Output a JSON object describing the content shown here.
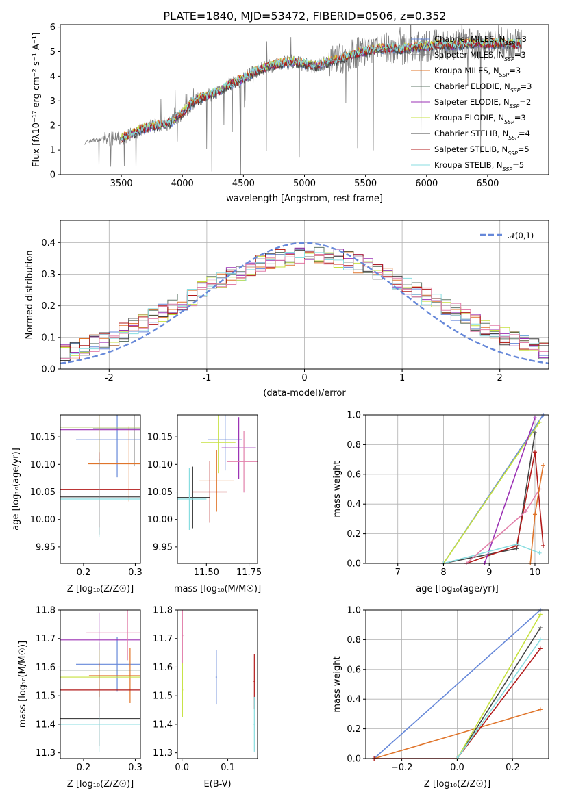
{
  "title": "PLATE=1840, MJD=53472, FIBERID=0506, z=0.352",
  "colors": {
    "Chabrier MILES": "#6688d9",
    "Salpeter MILES": "#808080",
    "Kroupa MILES": "#e0742a",
    "Chabrier ELODIE": "#62786a",
    "Salpeter ELODIE": "#9b31b4",
    "Kroupa ELODIE": "#c6e13e",
    "Chabrier STELIB": "#444444",
    "Salpeter STELIB": "#b21a1a",
    "Kroupa STELIB": "#88dde0",
    "pink": "#e27faa",
    "data": "#808080"
  },
  "chart_data": [
    {
      "type": "line",
      "title": "PLATE=1840, MJD=53472, FIBERID=0506, z=0.352",
      "xlabel": "wavelength [Angstrom, rest frame]",
      "ylabel": "Flux [f_λ 10^{-17} erg cm^{-2} s^{-1} A^{-1}]",
      "xlim": [
        3000,
        7000
      ],
      "ylim": [
        0,
        6.1
      ],
      "xticks": [
        3500,
        4000,
        4500,
        5000,
        5500,
        6000,
        6500
      ],
      "yticks": [
        0,
        1,
        2,
        3,
        4,
        5,
        6
      ],
      "continuum": {
        "x": [
          3200,
          3280,
          3400,
          3500,
          3600,
          3700,
          3800,
          3900,
          4000,
          4100,
          4200,
          4300,
          4400,
          4500,
          4600,
          4700,
          4800,
          4900,
          5000,
          5100,
          5200,
          5300,
          5400,
          5500,
          5600,
          5700,
          5800,
          5900,
          6000,
          6100,
          6200,
          6300,
          6400,
          6500,
          6600,
          6700,
          6780
        ],
        "y": [
          1.3,
          1.4,
          1.45,
          1.45,
          1.7,
          1.9,
          2.0,
          2.1,
          2.5,
          3.0,
          3.2,
          3.4,
          3.7,
          3.9,
          4.2,
          4.4,
          4.5,
          4.6,
          4.5,
          4.4,
          4.6,
          4.7,
          4.9,
          5.0,
          5.1,
          5.15,
          5.1,
          5.2,
          5.2,
          5.3,
          5.25,
          5.3,
          5.35,
          5.3,
          5.35,
          5.3,
          5.3
        ]
      },
      "legend": [
        "Chabrier MILES, N_SSP=3",
        "Salpeter MILES, N_SSP=3",
        "Kroupa MILES, N_SSP=3",
        "Chabrier ELODIE, N_SSP=3",
        "Salpeter ELODIE, N_SSP=2",
        "Kroupa ELODIE, N_SSP=3",
        "Chabrier STELIB, N_SSP=4",
        "Salpeter STELIB, N_SSP=5",
        "Kroupa STELIB, N_SSP=5"
      ],
      "legend_position": "top-right"
    },
    {
      "type": "line",
      "xlabel": "(data-model)/error",
      "ylabel": "Normed distribution",
      "xlim": [
        -2.5,
        2.5
      ],
      "ylim": [
        0,
        0.47
      ],
      "xticks": [
        -2,
        -1,
        0,
        1,
        2
      ],
      "yticks": [
        0.0,
        0.1,
        0.2,
        0.3,
        0.4
      ],
      "reference_curve": "N(0,1)",
      "legend": [
        "𝒩(0,1)"
      ],
      "legend_position": "top-right",
      "grid": true
    },
    {
      "type": "scatter",
      "xlabel": "Z [log10(Z/Z☉)]",
      "ylabel": "age  [log10(age/yr)]",
      "xlim": [
        0.155,
        0.31
      ],
      "ylim": [
        9.92,
        10.19
      ],
      "xticks": [
        0.2,
        0.3
      ],
      "yticks": [
        9.95,
        10.0,
        10.05,
        10.1,
        10.15
      ],
      "points": [
        {
          "model": "Chabrier MILES",
          "x": 0.265,
          "y": 10.145
        },
        {
          "model": "Salpeter MILES",
          "x": 0.298,
          "y": 10.165
        },
        {
          "model": "Kroupa MILES",
          "x": 0.288,
          "y": 10.101
        },
        {
          "model": "Chabrier ELODIE",
          "x": 0.23,
          "y": 10.168
        },
        {
          "model": "Salpeter ELODIE",
          "x": 0.23,
          "y": 10.163
        },
        {
          "model": "Kroupa ELODIE",
          "x": 0.23,
          "y": 10.168
        },
        {
          "model": "Chabrier STELIB",
          "x": 0.23,
          "y": 10.041
        },
        {
          "model": "Salpeter STELIB",
          "x": 0.23,
          "y": 10.054
        },
        {
          "model": "Kroupa STELIB",
          "x": 0.23,
          "y": 10.037
        }
      ]
    },
    {
      "type": "scatter",
      "xlabel": "mass [log10(M/M☉)]",
      "xlim": [
        11.33,
        11.8
      ],
      "ylim": [
        9.92,
        10.19
      ],
      "xticks": [
        11.5,
        11.75
      ],
      "yticks": [
        9.95,
        10.0,
        10.05,
        10.1,
        10.15
      ],
      "points": [
        {
          "model": "Chabrier MILES",
          "x": 11.61,
          "y": 10.145
        },
        {
          "model": "Kroupa MILES",
          "x": 11.56,
          "y": 10.07
        },
        {
          "model": "Salpeter ELODIE",
          "x": 11.69,
          "y": 10.13
        },
        {
          "model": "Kroupa ELODIE",
          "x": 11.57,
          "y": 10.14
        },
        {
          "model": "Chabrier STELIB",
          "x": 11.42,
          "y": 10.04
        },
        {
          "model": "Salpeter STELIB",
          "x": 11.52,
          "y": 10.05
        },
        {
          "model": "Kroupa STELIB",
          "x": 11.4,
          "y": 10.037
        },
        {
          "model": "pink",
          "x": 11.72,
          "y": 10.105
        }
      ]
    },
    {
      "type": "line",
      "xlabel": "age  [log10(age/yr)]",
      "ylabel": "mass weight",
      "xlim": [
        6.3,
        10.3
      ],
      "ylim": [
        0,
        1.0
      ],
      "xticks": [
        7,
        8,
        9,
        10
      ],
      "yticks": [
        0.0,
        0.2,
        0.4,
        0.6,
        0.8,
        1.0
      ],
      "grid": true,
      "series": [
        {
          "model": "Chabrier MILES",
          "x": [
            8.0,
            10.18
          ],
          "y": [
            0.0,
            1.0
          ]
        },
        {
          "model": "Kroupa ELODIE",
          "x": [
            8.0,
            10.1
          ],
          "y": [
            0.0,
            0.95
          ]
        },
        {
          "model": "Chabrier STELIB",
          "x": [
            8.0,
            9.6,
            10.0
          ],
          "y": [
            0.0,
            0.1,
            0.88
          ]
        },
        {
          "model": "Salpeter STELIB",
          "x": [
            8.5,
            9.6,
            10.0,
            10.18
          ],
          "y": [
            0.0,
            0.12,
            0.75,
            0.12
          ]
        },
        {
          "model": "Salpeter ELODIE",
          "x": [
            8.9,
            10.0
          ],
          "y": [
            0.0,
            0.98
          ]
        },
        {
          "model": "Kroupa STELIB",
          "x": [
            8.0,
            9.6,
            10.1
          ],
          "y": [
            0.0,
            0.13,
            0.07
          ]
        },
        {
          "model": "pink",
          "x": [
            8.5,
            9.8,
            10.1
          ],
          "y": [
            0.0,
            0.35,
            0.5
          ]
        },
        {
          "model": "Kroupa MILES",
          "x": [
            9.9,
            10.0,
            10.18
          ],
          "y": [
            0.0,
            0.33,
            0.66
          ]
        }
      ]
    },
    {
      "type": "scatter",
      "xlabel": "Z [log10(Z/Z☉)]",
      "ylabel": "mass [log10(M/M☉)]",
      "xlim": [
        0.155,
        0.31
      ],
      "ylim": [
        11.28,
        11.8
      ],
      "xticks": [
        0.2,
        0.3
      ],
      "yticks": [
        11.3,
        11.4,
        11.5,
        11.6,
        11.7,
        11.8
      ],
      "points": [
        {
          "model": "Chabrier MILES",
          "x": 0.265,
          "y": 11.61
        },
        {
          "model": "Kroupa MILES",
          "x": 0.29,
          "y": 11.57
        },
        {
          "model": "Chabrier ELODIE",
          "x": 0.23,
          "y": 11.59
        },
        {
          "model": "Salpeter ELODIE",
          "x": 0.23,
          "y": 11.695
        },
        {
          "model": "Kroupa ELODIE",
          "x": 0.23,
          "y": 11.565
        },
        {
          "model": "Chabrier STELIB",
          "x": 0.23,
          "y": 11.42
        },
        {
          "model": "Salpeter STELIB",
          "x": 0.23,
          "y": 11.52
        },
        {
          "model": "Kroupa STELIB",
          "x": 0.23,
          "y": 11.4
        },
        {
          "model": "pink",
          "x": 0.285,
          "y": 11.72
        }
      ]
    },
    {
      "type": "scatter",
      "xlabel": "E(B-V)",
      "xlim": [
        -0.01,
        0.165
      ],
      "ylim": [
        11.28,
        11.8
      ],
      "xticks": [
        0.0,
        0.1
      ],
      "yticks": [
        11.3,
        11.4,
        11.5,
        11.6,
        11.7,
        11.8
      ],
      "points": [
        {
          "model": "Chabrier MILES",
          "x": 0.075,
          "y": 11.565
        },
        {
          "model": "Kroupa ELODIE",
          "x": 0.001,
          "y": 11.52
        },
        {
          "model": "Salpeter STELIB",
          "x": 0.158,
          "y": 11.55
        },
        {
          "model": "Kroupa STELIB",
          "x": 0.158,
          "y": 11.4
        },
        {
          "model": "pink",
          "x": 0.001,
          "y": 11.71
        }
      ]
    },
    {
      "type": "line",
      "xlabel": "Z [log10(Z/Z☉)]",
      "ylabel": "mass weight",
      "xlim": [
        -0.33,
        0.33
      ],
      "ylim": [
        0,
        1.0
      ],
      "xticks": [
        -0.2,
        0.0,
        0.2
      ],
      "yticks": [
        0.0,
        0.2,
        0.4,
        0.6,
        0.8,
        1.0
      ],
      "grid": true,
      "series": [
        {
          "model": "Chabrier MILES",
          "x": [
            -0.3,
            0.3
          ],
          "y": [
            0.0,
            1.0
          ]
        },
        {
          "model": "Kroupa MILES",
          "x": [
            -0.3,
            0.3
          ],
          "y": [
            0.0,
            0.33
          ]
        },
        {
          "model": "Salpeter STELIB",
          "x": [
            -0.3,
            0.0,
            0.3
          ],
          "y": [
            0.0,
            0.0,
            0.74
          ]
        },
        {
          "model": "Chabrier STELIB",
          "x": [
            0.0,
            0.3
          ],
          "y": [
            0.0,
            0.88
          ]
        },
        {
          "model": "Kroupa ELODIE",
          "x": [
            0.0,
            0.3
          ],
          "y": [
            0.0,
            0.97
          ]
        },
        {
          "model": "Kroupa STELIB",
          "x": [
            0.0,
            0.3
          ],
          "y": [
            0.0,
            0.8
          ]
        }
      ]
    }
  ]
}
